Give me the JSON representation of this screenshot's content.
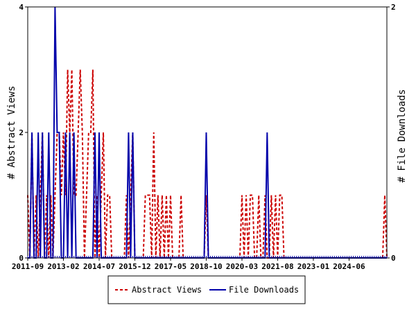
{
  "chart_data": {
    "type": "line",
    "title": "",
    "xlabel": "",
    "ylabel": "# Abstract Views",
    "y2label": "# File Downloads",
    "x_range": [
      "2011-09",
      "2025-12"
    ],
    "ylim": [
      0,
      4
    ],
    "y2lim": [
      0,
      2
    ],
    "yticks": [
      "0",
      "2",
      "4"
    ],
    "y2ticks": [
      "0",
      "2"
    ],
    "x_tick_labels": [
      "2011-09",
      "2013-02",
      "2014-07",
      "2015-12",
      "2017-05",
      "2018-10",
      "2020-03",
      "2021-08",
      "2023-01",
      "2024-06"
    ],
    "grid": false,
    "legend_position": "bottom",
    "series": [
      {
        "name": "Abstract Views",
        "axis": "left",
        "color": "#cc0000",
        "style": "dashed",
        "points": [
          [
            "2011-09",
            1
          ],
          [
            "2011-10",
            0
          ],
          [
            "2011-11",
            2
          ],
          [
            "2011-12",
            0
          ],
          [
            "2012-01",
            1
          ],
          [
            "2012-02",
            0
          ],
          [
            "2012-03",
            1
          ],
          [
            "2012-04",
            2
          ],
          [
            "2012-05",
            0
          ],
          [
            "2012-06",
            1
          ],
          [
            "2012-07",
            0
          ],
          [
            "2012-08",
            1
          ],
          [
            "2012-09",
            0
          ],
          [
            "2012-10",
            1
          ],
          [
            "2012-11",
            2
          ],
          [
            "2012-12",
            2
          ],
          [
            "2013-01",
            1
          ],
          [
            "2013-02",
            2
          ],
          [
            "2013-03",
            1
          ],
          [
            "2013-04",
            3
          ],
          [
            "2013-05",
            2
          ],
          [
            "2013-06",
            3
          ],
          [
            "2013-07",
            1
          ],
          [
            "2013-08",
            1
          ],
          [
            "2013-09",
            2
          ],
          [
            "2013-10",
            3
          ],
          [
            "2013-11",
            2
          ],
          [
            "2013-12",
            0
          ],
          [
            "2014-01",
            1
          ],
          [
            "2014-02",
            2
          ],
          [
            "2014-03",
            2
          ],
          [
            "2014-04",
            3
          ],
          [
            "2014-05",
            0
          ],
          [
            "2014-06",
            1
          ],
          [
            "2014-07",
            0
          ],
          [
            "2014-08",
            1
          ],
          [
            "2014-09",
            2
          ],
          [
            "2014-10",
            0
          ],
          [
            "2014-11",
            1
          ],
          [
            "2014-12",
            1
          ],
          [
            "2015-01",
            0
          ],
          [
            "2015-02",
            0
          ],
          [
            "2015-03",
            0
          ],
          [
            "2015-04",
            0
          ],
          [
            "2015-05",
            0
          ],
          [
            "2015-06",
            0
          ],
          [
            "2015-07",
            0
          ],
          [
            "2015-08",
            1
          ],
          [
            "2015-09",
            0
          ],
          [
            "2015-10",
            1
          ],
          [
            "2015-11",
            2
          ],
          [
            "2015-12",
            0
          ],
          [
            "2016-01",
            0
          ],
          [
            "2016-02",
            0
          ],
          [
            "2016-03",
            0
          ],
          [
            "2016-04",
            0
          ],
          [
            "2016-05",
            1
          ],
          [
            "2016-06",
            1
          ],
          [
            "2016-07",
            1
          ],
          [
            "2016-08",
            0
          ],
          [
            "2016-09",
            2
          ],
          [
            "2016-10",
            0
          ],
          [
            "2016-11",
            1
          ],
          [
            "2016-12",
            0
          ],
          [
            "2017-01",
            1
          ],
          [
            "2017-02",
            0
          ],
          [
            "2017-03",
            1
          ],
          [
            "2017-04",
            0
          ],
          [
            "2017-05",
            1
          ],
          [
            "2017-06",
            0
          ],
          [
            "2017-07",
            0
          ],
          [
            "2017-08",
            0
          ],
          [
            "2017-09",
            0
          ],
          [
            "2017-10",
            1
          ],
          [
            "2017-11",
            0
          ],
          [
            "2017-12",
            0
          ],
          [
            "2018-01",
            0
          ],
          [
            "2018-02",
            0
          ],
          [
            "2018-03",
            0
          ],
          [
            "2018-04",
            0
          ],
          [
            "2018-05",
            0
          ],
          [
            "2018-06",
            0
          ],
          [
            "2018-07",
            0
          ],
          [
            "2018-08",
            0
          ],
          [
            "2018-09",
            0
          ],
          [
            "2018-10",
            1
          ],
          [
            "2018-11",
            0
          ],
          [
            "2018-12",
            0
          ],
          [
            "2019-01",
            0
          ],
          [
            "2019-02",
            0
          ],
          [
            "2019-03",
            0
          ],
          [
            "2019-04",
            0
          ],
          [
            "2019-05",
            0
          ],
          [
            "2019-06",
            0
          ],
          [
            "2019-07",
            0
          ],
          [
            "2019-08",
            0
          ],
          [
            "2019-09",
            0
          ],
          [
            "2019-10",
            0
          ],
          [
            "2019-11",
            0
          ],
          [
            "2019-12",
            0
          ],
          [
            "2020-01",
            0
          ],
          [
            "2020-02",
            0
          ],
          [
            "2020-03",
            1
          ],
          [
            "2020-04",
            0
          ],
          [
            "2020-05",
            1
          ],
          [
            "2020-06",
            0
          ],
          [
            "2020-07",
            1
          ],
          [
            "2020-08",
            1
          ],
          [
            "2020-09",
            0
          ],
          [
            "2020-10",
            0
          ],
          [
            "2020-11",
            1
          ],
          [
            "2020-12",
            0
          ],
          [
            "2021-01",
            0
          ],
          [
            "2021-02",
            1
          ],
          [
            "2021-03",
            0
          ],
          [
            "2021-04",
            0
          ],
          [
            "2021-05",
            1
          ],
          [
            "2021-06",
            0
          ],
          [
            "2021-07",
            1
          ],
          [
            "2021-08",
            0
          ],
          [
            "2021-09",
            1
          ],
          [
            "2021-10",
            1
          ],
          [
            "2021-11",
            0
          ],
          [
            "2021-12",
            0
          ],
          [
            "2022-01",
            0
          ],
          [
            "2022-06",
            0
          ],
          [
            "2023-01",
            0
          ],
          [
            "2023-06",
            0
          ],
          [
            "2024-01",
            0
          ],
          [
            "2024-06",
            0
          ],
          [
            "2025-01",
            0
          ],
          [
            "2025-06",
            0
          ],
          [
            "2025-10",
            0
          ],
          [
            "2025-11",
            1
          ],
          [
            "2025-12",
            0
          ]
        ]
      },
      {
        "name": "File Downloads",
        "axis": "right",
        "color": "#0000aa",
        "style": "solid",
        "points": [
          [
            "2011-09",
            0
          ],
          [
            "2011-10",
            0
          ],
          [
            "2011-11",
            1
          ],
          [
            "2011-12",
            0
          ],
          [
            "2012-01",
            0
          ],
          [
            "2012-02",
            1
          ],
          [
            "2012-03",
            0
          ],
          [
            "2012-04",
            1
          ],
          [
            "2012-05",
            0
          ],
          [
            "2012-06",
            0
          ],
          [
            "2012-07",
            1
          ],
          [
            "2012-08",
            0
          ],
          [
            "2012-09",
            0
          ],
          [
            "2012-10",
            2
          ],
          [
            "2012-11",
            1
          ],
          [
            "2012-12",
            1
          ],
          [
            "2013-01",
            0
          ],
          [
            "2013-02",
            0
          ],
          [
            "2013-03",
            1
          ],
          [
            "2013-04",
            0
          ],
          [
            "2013-05",
            1
          ],
          [
            "2013-06",
            0
          ],
          [
            "2013-07",
            1
          ],
          [
            "2013-08",
            0
          ],
          [
            "2013-09",
            0
          ],
          [
            "2013-10",
            0
          ],
          [
            "2013-11",
            0
          ],
          [
            "2013-12",
            0
          ],
          [
            "2014-01",
            0
          ],
          [
            "2014-02",
            0
          ],
          [
            "2014-03",
            0
          ],
          [
            "2014-04",
            0
          ],
          [
            "2014-05",
            1
          ],
          [
            "2014-06",
            0
          ],
          [
            "2014-07",
            1
          ],
          [
            "2014-08",
            0
          ],
          [
            "2014-09",
            0
          ],
          [
            "2014-10",
            0
          ],
          [
            "2014-11",
            0
          ],
          [
            "2014-12",
            0
          ],
          [
            "2015-01",
            0
          ],
          [
            "2015-02",
            0
          ],
          [
            "2015-03",
            0
          ],
          [
            "2015-04",
            0
          ],
          [
            "2015-05",
            0
          ],
          [
            "2015-06",
            0
          ],
          [
            "2015-07",
            0
          ],
          [
            "2015-08",
            0
          ],
          [
            "2015-09",
            1
          ],
          [
            "2015-10",
            0
          ],
          [
            "2015-11",
            1
          ],
          [
            "2015-12",
            0
          ],
          [
            "2016-01",
            0
          ],
          [
            "2016-06",
            0
          ],
          [
            "2017-01",
            0
          ],
          [
            "2017-06",
            0
          ],
          [
            "2018-01",
            0
          ],
          [
            "2018-06",
            0
          ],
          [
            "2018-09",
            0
          ],
          [
            "2018-10",
            1
          ],
          [
            "2018-11",
            0
          ],
          [
            "2019-01",
            0
          ],
          [
            "2019-06",
            0
          ],
          [
            "2020-01",
            0
          ],
          [
            "2020-06",
            0
          ],
          [
            "2021-01",
            0
          ],
          [
            "2021-02",
            0
          ],
          [
            "2021-03",
            1
          ],
          [
            "2021-04",
            0
          ],
          [
            "2021-06",
            0
          ],
          [
            "2022-01",
            0
          ],
          [
            "2022-06",
            0
          ],
          [
            "2023-01",
            0
          ],
          [
            "2023-06",
            0
          ],
          [
            "2024-01",
            0
          ],
          [
            "2024-06",
            0
          ],
          [
            "2025-01",
            0
          ],
          [
            "2025-06",
            0
          ],
          [
            "2025-12",
            0
          ]
        ]
      }
    ]
  }
}
